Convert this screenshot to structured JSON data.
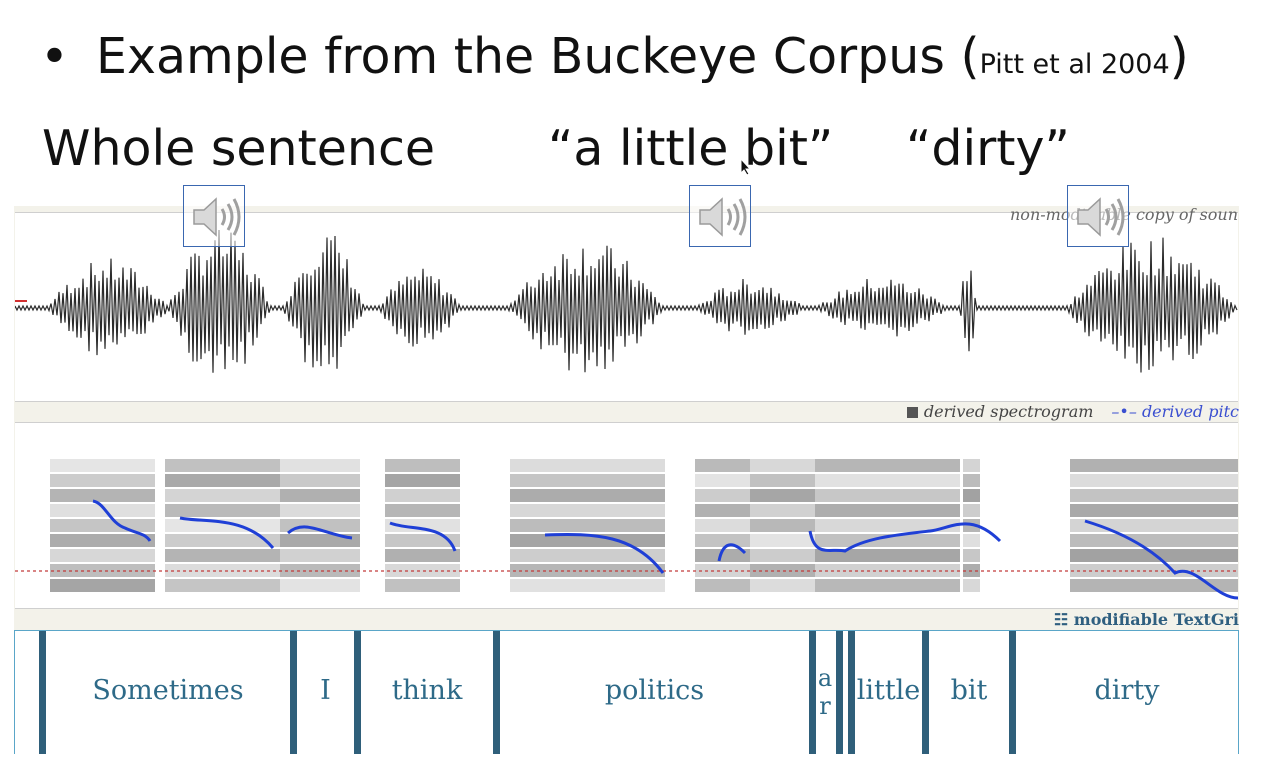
{
  "slide": {
    "bullet": "•",
    "title": "Example from the Buckeye Corpus (",
    "citation": "Pitt et al 2004",
    "title_close": ")",
    "labels": [
      "Whole sentence",
      "“a little bit”",
      "“dirty”"
    ]
  },
  "praat": {
    "top_caption": "non-modifiable copy of soun",
    "legend": {
      "spectrogram": "derived spectrogram",
      "pitch": "derived pitc"
    },
    "textgrid_caption": "modifiable TextGri",
    "tier_words": [
      "Sometimes",
      "I",
      "think",
      "politics",
      "a",
      "r",
      "little",
      "bit",
      "dirty"
    ]
  },
  "colors": {
    "pitch": "#1f3fd6",
    "boundary": "#2f5f7a",
    "tier_text": "#2e6a88",
    "speaker_frame": "#3a67b0"
  },
  "icons": {
    "speaker": "speaker-icon",
    "cursor": "mouse-cursor-icon"
  }
}
